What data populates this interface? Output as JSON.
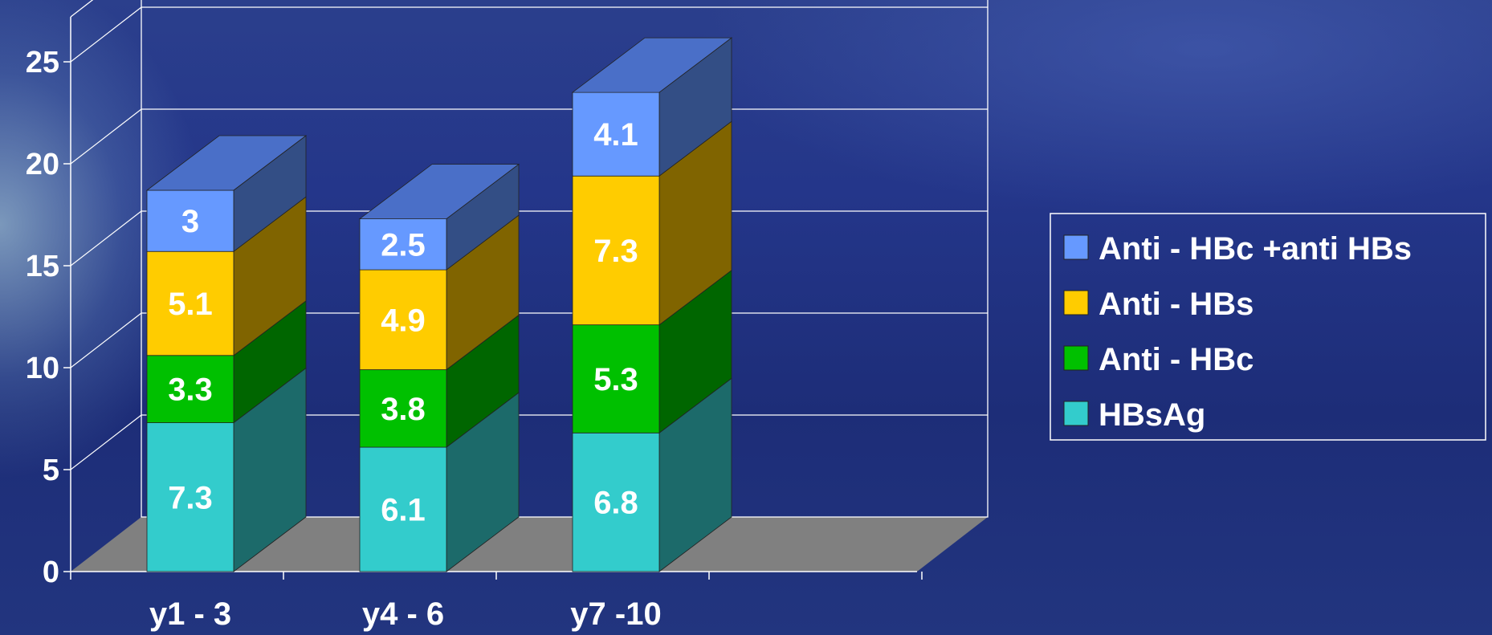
{
  "chart_data": {
    "type": "bar",
    "stacked": true,
    "three_d": true,
    "categories": [
      "y1 - 3",
      "y4 - 6",
      "y7 -10"
    ],
    "series": [
      {
        "name": "HBsAg",
        "values": [
          7.3,
          6.1,
          6.8
        ],
        "color": "#33CCCC",
        "side_color": "#1C6A6A"
      },
      {
        "name": "Anti - HBc",
        "values": [
          3.3,
          3.8,
          5.3
        ],
        "color": "#00C000",
        "side_color": "#006600"
      },
      {
        "name": "Anti - HBs",
        "values": [
          5.1,
          4.9,
          7.3
        ],
        "color": "#FFCC00",
        "side_color": "#806400"
      },
      {
        "name": "Anti - HBc +anti HBs",
        "values": [
          3,
          2.5,
          4.1
        ],
        "color": "#6699FF",
        "side_color": "#334E85",
        "top_color": "#4A6FC8"
      }
    ],
    "value_labels": [
      [
        "7.3",
        "6.1",
        "6.8"
      ],
      [
        "3.3",
        "3.8",
        "5.3"
      ],
      [
        "5.1",
        "4.9",
        "7.3"
      ],
      [
        "3",
        "2.5",
        "4.1"
      ]
    ],
    "y_ticks": [
      "0",
      "5",
      "10",
      "15",
      "20",
      "25"
    ],
    "ylim": [
      0,
      25
    ],
    "grid": true,
    "legend_position": "right",
    "floor_color": "#808080"
  }
}
